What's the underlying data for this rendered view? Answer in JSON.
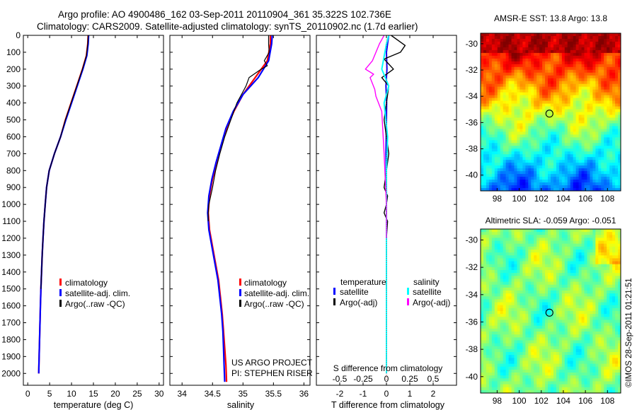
{
  "header": {
    "line1": "Argo profile: AO 4900486_162 03-Sep-2011 20110904_361 35.322S 102.736E",
    "line2": "Climatology: CARS2009. Satellite-adjusted climatology: synTS_20110902.nc (1.7d earlier)"
  },
  "side_text": "©IMOS 28-Sep-2011 01:21:51",
  "colors": {
    "climatology": "#ff0000",
    "satellite": "#0000ff",
    "argo": "#000000",
    "sal_satellite": "#00ffff",
    "sal_argo": "#ff00ff"
  },
  "panels": {
    "temperature": {
      "xlabel": "temperature (deg C)",
      "legend": [
        "climatology",
        "satellite-adj. clim.",
        "Argo(..raw -QC)"
      ]
    },
    "salinity": {
      "xlabel": "salinity",
      "legend": [
        "climatology",
        "satellite-adj. clim.",
        "Argo(..raw -QC)"
      ],
      "note1": "US ARGO PROJECT",
      "note2": "PI: STEPHEN RISER"
    },
    "difference": {
      "top_label": "S difference from climatology",
      "xlabel": "T difference from climatology",
      "legend_temp_title": "temperature",
      "legend_sal_title": "salinity",
      "legend_temp": [
        "satellite",
        "Argo(-adj)"
      ],
      "legend_sal": [
        "satellite",
        "Argo(-adj)"
      ]
    },
    "sst_map": {
      "title": "AMSR-E SST: 13.8 Argo: 13.8",
      "xticks": [
        "98",
        "100",
        "102",
        "104",
        "106",
        "108"
      ],
      "yticks": [
        "-30",
        "-32",
        "-34",
        "-36",
        "-38",
        "-40"
      ]
    },
    "sla_map": {
      "title": "Altimetric SLA: -0.059 Argo: -0.051",
      "xticks": [
        "98",
        "100",
        "102",
        "104",
        "106",
        "108"
      ],
      "yticks": [
        "-30",
        "-32",
        "-34",
        "-36",
        "-38",
        "-40"
      ]
    }
  },
  "chart_data": [
    {
      "type": "line",
      "xlabel": "temperature (deg C)",
      "ylabel": "",
      "xlim": [
        -1,
        31
      ],
      "ylim": [
        2070,
        0
      ],
      "xticks": [
        0,
        5,
        10,
        15,
        20,
        25,
        30
      ],
      "yticks": [
        0,
        100,
        200,
        300,
        400,
        500,
        600,
        700,
        800,
        900,
        1000,
        1100,
        1200,
        1300,
        1400,
        1500,
        1600,
        1700,
        1800,
        1900,
        2000
      ],
      "series": [
        {
          "name": "climatology",
          "color": "#ff0000",
          "width": 2.2,
          "x": [
            13.8,
            13.7,
            13.4,
            12.5,
            11.2,
            9.9,
            8.6,
            7.5,
            6.1,
            4.9,
            4.3,
            4.0,
            3.7,
            3.5,
            3.3,
            3.15,
            3.0,
            2.9,
            2.8,
            2.7,
            2.6,
            2.5
          ],
          "y": [
            0,
            50,
            120,
            200,
            300,
            400,
            500,
            600,
            700,
            800,
            900,
            1000,
            1100,
            1200,
            1300,
            1400,
            1500,
            1600,
            1700,
            1800,
            1900,
            2000
          ]
        },
        {
          "name": "satellite-adj. clim.",
          "color": "#0000ff",
          "width": 2.2,
          "x": [
            13.9,
            13.8,
            13.5,
            12.6,
            11.3,
            10.0,
            8.7,
            7.5,
            6.1,
            4.9,
            4.3,
            4.0,
            3.7,
            3.5,
            3.3,
            3.15,
            3.0,
            2.9,
            2.8,
            2.7,
            2.6,
            2.5
          ],
          "y": [
            0,
            50,
            120,
            200,
            300,
            400,
            500,
            600,
            700,
            800,
            900,
            1000,
            1100,
            1200,
            1300,
            1400,
            1500,
            1600,
            1700,
            1800,
            1900,
            2000
          ]
        },
        {
          "name": "Argo(..raw -QC)",
          "color": "#000000",
          "width": 1.2,
          "x": [
            13.8,
            13.7,
            13.4,
            12.5,
            11.2,
            9.9,
            8.6,
            7.5,
            6.1,
            4.9,
            4.3,
            4.0,
            3.7,
            3.5,
            3.3,
            3.15,
            3.0
          ],
          "y": [
            0,
            50,
            120,
            200,
            300,
            400,
            500,
            600,
            700,
            800,
            900,
            1000,
            1100,
            1200,
            1300,
            1400,
            1500
          ]
        }
      ]
    },
    {
      "type": "line",
      "xlabel": "salinity",
      "ylabel": "",
      "xlim": [
        33.8,
        36.1
      ],
      "ylim": [
        2070,
        0
      ],
      "xticks": [
        34,
        34.5,
        35,
        35.5,
        36
      ],
      "series": [
        {
          "name": "climatology",
          "color": "#ff0000",
          "width": 2.2,
          "x": [
            35.45,
            35.45,
            35.4,
            35.2,
            35.0,
            34.85,
            34.73,
            34.65,
            34.57,
            34.5,
            34.45,
            34.43,
            34.45,
            34.5,
            34.55,
            34.6,
            34.63,
            34.66,
            34.68,
            34.7,
            34.72,
            34.73
          ],
          "y": [
            0,
            50,
            150,
            250,
            350,
            450,
            550,
            650,
            750,
            850,
            950,
            1050,
            1150,
            1250,
            1350,
            1450,
            1550,
            1650,
            1750,
            1850,
            1950,
            2050
          ]
        },
        {
          "name": "satellite-adj. clim.",
          "color": "#0000ff",
          "width": 2.2,
          "x": [
            35.48,
            35.47,
            35.42,
            35.25,
            35.0,
            34.84,
            34.72,
            34.64,
            34.56,
            34.49,
            34.44,
            34.42,
            34.44,
            34.49,
            34.54,
            34.59,
            34.62,
            34.65,
            34.67,
            34.68,
            34.69,
            34.7
          ],
          "y": [
            0,
            50,
            150,
            250,
            350,
            450,
            550,
            650,
            750,
            850,
            950,
            1050,
            1150,
            1250,
            1350,
            1450,
            1550,
            1650,
            1750,
            1850,
            1950,
            2050
          ]
        },
        {
          "name": "Argo(..raw -QC)",
          "color": "#000000",
          "width": 1.2,
          "x": [
            35.42,
            35.42,
            35.43,
            35.35,
            35.4,
            35.3,
            35.1,
            35.05,
            34.9,
            34.8,
            34.7,
            34.62,
            34.55,
            34.5,
            34.44,
            34.43,
            34.43
          ],
          "y": [
            0,
            50,
            100,
            150,
            180,
            200,
            250,
            300,
            400,
            500,
            600,
            700,
            800,
            900,
            1000,
            1050,
            1100
          ]
        }
      ]
    },
    {
      "type": "line",
      "xlabel": "T difference from climatology",
      "ylabel": "",
      "xlim": [
        -3,
        3
      ],
      "ylim": [
        2070,
        0
      ],
      "xticks": [
        -2,
        -1,
        0,
        1,
        2
      ],
      "xticklabels": [
        "-2",
        "-1",
        "0",
        "1",
        "2"
      ],
      "top_xticks": [
        -2,
        -1,
        0,
        1,
        2
      ],
      "top_xticklabels": [
        "-0.5",
        "-0.25",
        "0",
        "0.25",
        "0.5"
      ],
      "top_xlabel": "S difference from climatology",
      "series": [
        {
          "name": "satellite (temperature)",
          "color": "#0000ff",
          "width": 2,
          "x": [
            0.1,
            0.05,
            0.0,
            0.02,
            -0.02,
            0.01,
            0.0,
            -0.02,
            0.0,
            0.0,
            0.0,
            0.0,
            0.0
          ],
          "y": [
            0,
            50,
            100,
            200,
            300,
            400,
            500,
            700,
            900,
            1100,
            1200,
            1500,
            2000
          ]
        },
        {
          "name": "Argo(-adj) (temperature)",
          "color": "#000000",
          "width": 1.4,
          "x": [
            0.2,
            0.8,
            0.6,
            -0.1,
            0.3,
            -0.2,
            0.1,
            0.0,
            -0.1,
            0.1,
            0.0,
            -0.1,
            0.05,
            0.0,
            -0.1,
            0.05,
            0.0
          ],
          "y": [
            0,
            60,
            100,
            140,
            200,
            250,
            300,
            400,
            500,
            700,
            800,
            900,
            950,
            1000,
            1050,
            1100,
            1200
          ]
        },
        {
          "name": "satellite (salinity)",
          "color": "#00ffff",
          "width": 2,
          "x": [
            0.1,
            0.0,
            -0.2,
            0.1,
            -0.1,
            0.05,
            0.0,
            0.0,
            0.0,
            0.0,
            0.0
          ],
          "y": [
            0,
            50,
            200,
            300,
            400,
            600,
            800,
            1000,
            1200,
            1600,
            2000
          ]
        },
        {
          "name": "Argo(-adj) (salinity)",
          "color": "#ff00ff",
          "width": 1.4,
          "x": [
            -0.1,
            -0.3,
            -0.6,
            -0.9,
            -0.55,
            -0.7,
            -0.5,
            -0.45,
            -0.2,
            -0.1,
            0.0,
            0.0
          ],
          "y": [
            0,
            50,
            150,
            200,
            230,
            250,
            320,
            360,
            450,
            700,
            1000,
            1200
          ]
        }
      ]
    },
    {
      "type": "heatmap",
      "title": "AMSR-E SST: 13.8 Argo: 13.8",
      "xlim": [
        96.5,
        109.2
      ],
      "ylim": [
        -41.2,
        -29.2
      ],
      "xticks": [
        98,
        100,
        102,
        104,
        106,
        108
      ],
      "yticks": [
        -30,
        -32,
        -34,
        -36,
        -38,
        -40
      ],
      "marker": {
        "lon": 102.74,
        "lat": -35.32
      }
    },
    {
      "type": "heatmap",
      "title": "Altimetric SLA: -0.059 Argo: -0.051",
      "xlim": [
        96.5,
        109.2
      ],
      "ylim": [
        -41.2,
        -29.2
      ],
      "xticks": [
        98,
        100,
        102,
        104,
        106,
        108
      ],
      "yticks": [
        -30,
        -32,
        -34,
        -36,
        -38,
        -40
      ],
      "marker": {
        "lon": 102.74,
        "lat": -35.32
      }
    }
  ]
}
